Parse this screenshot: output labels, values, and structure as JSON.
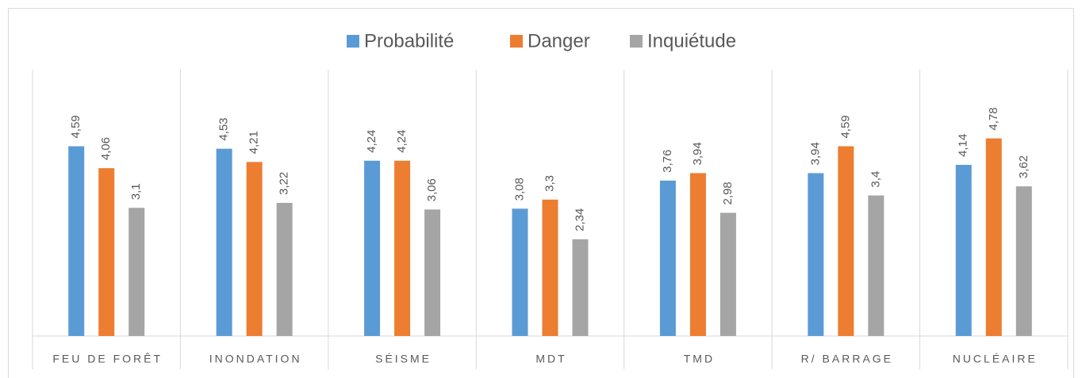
{
  "chart_data": {
    "type": "bar",
    "categories": [
      "FEU DE FORÊT",
      "INONDATION",
      "SÉISME",
      "MDT",
      "TMD",
      "R/ BARRAGE",
      "NUCLÉAIRE"
    ],
    "series": [
      {
        "name": "Probabilité",
        "color": "#5b9bd5",
        "values": [
          4.59,
          4.53,
          4.24,
          3.08,
          3.76,
          3.94,
          4.14
        ],
        "value_labels": [
          "4,59",
          "4,53",
          "4,24",
          "3,08",
          "3,76",
          "3,94",
          "4,14"
        ]
      },
      {
        "name": "Danger",
        "color": "#ed7d31",
        "values": [
          4.06,
          4.21,
          4.24,
          3.3,
          3.94,
          4.59,
          4.78
        ],
        "value_labels": [
          "4,06",
          "4,21",
          "4,24",
          "3,3",
          "3,94",
          "4,59",
          "4,78"
        ]
      },
      {
        "name": "Inquiétude",
        "color": "#a5a5a5",
        "values": [
          3.1,
          3.22,
          3.06,
          2.34,
          2.98,
          3.4,
          3.62
        ],
        "value_labels": [
          "3,1",
          "3,22",
          "3,06",
          "2,34",
          "2,98",
          "3,4",
          "3,62"
        ]
      }
    ],
    "ylim": [
      0,
      6
    ],
    "legend": "top"
  }
}
